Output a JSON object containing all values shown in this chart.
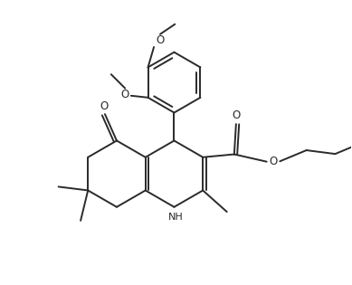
{
  "background_color": "#ffffff",
  "line_color": "#2a2a2a",
  "line_width": 1.4,
  "figsize": [
    3.89,
    3.15
  ],
  "dpi": 100,
  "xlim": [
    0,
    9.5
  ],
  "ylim": [
    0,
    7.7
  ]
}
